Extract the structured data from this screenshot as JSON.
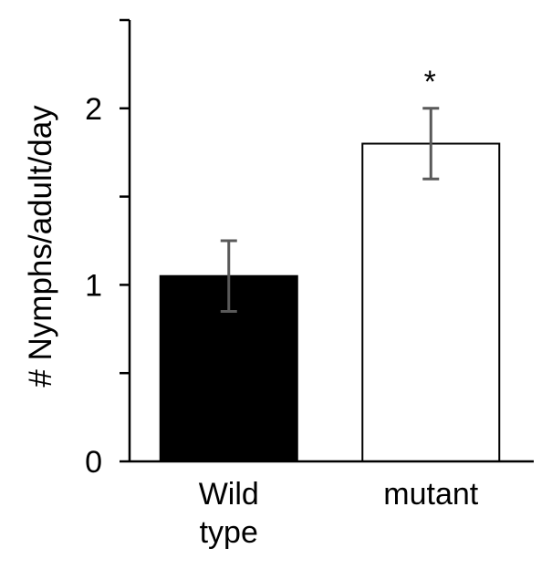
{
  "chart_data": {
    "type": "bar",
    "title": "",
    "xlabel": "",
    "ylabel": "# Nymphs/adult/day",
    "ylim": [
      0,
      2.5
    ],
    "yticks": [
      0,
      0.5,
      1,
      1.5,
      2,
      2.5
    ],
    "ytick_labels": [
      "0",
      "",
      "1",
      "",
      "2",
      ""
    ],
    "categories": [
      {
        "lines": [
          "Wild",
          "type"
        ]
      },
      {
        "lines": [
          "mutant"
        ]
      }
    ],
    "values": [
      1.05,
      1.8
    ],
    "errors": [
      0.2,
      0.2
    ],
    "annotations": [
      "",
      "*"
    ],
    "bar_colors": [
      "#000000",
      "#ffffff"
    ],
    "bar_edge_color": "#000000",
    "error_color": "#595959",
    "grid": false,
    "legend": "none"
  }
}
